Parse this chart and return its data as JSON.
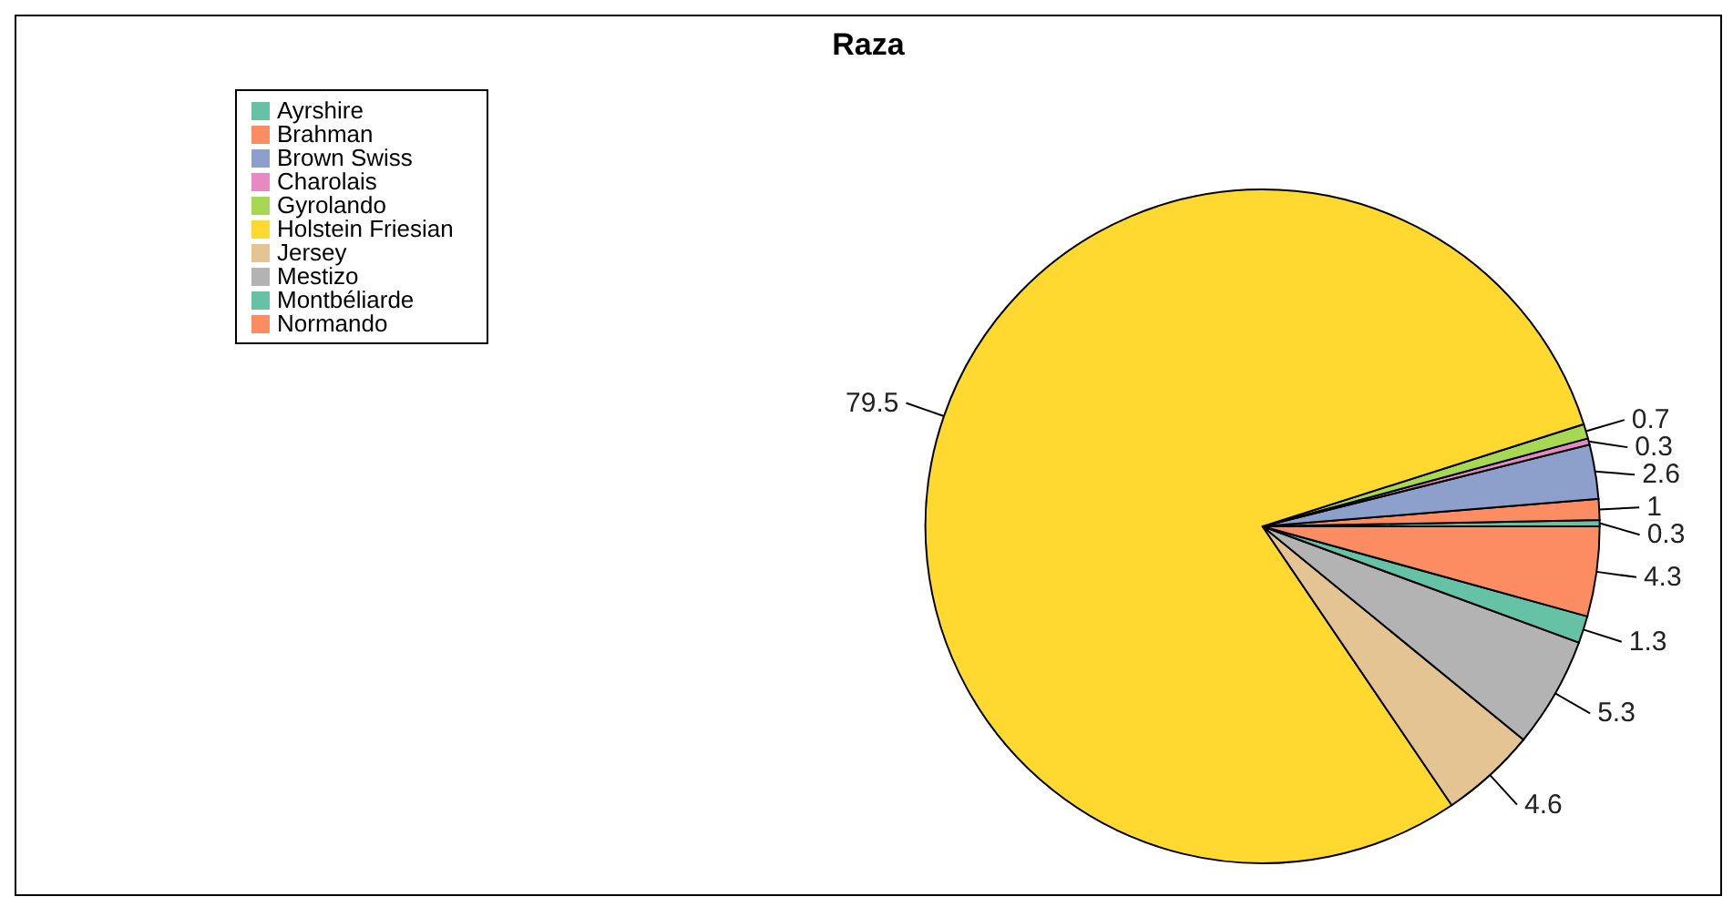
{
  "chart_data": {
    "type": "pie",
    "title": "Raza",
    "categories": [
      "Ayrshire",
      "Brahman",
      "Brown Swiss",
      "Charolais",
      "Gyrolando",
      "Holstein Friesian",
      "Jersey",
      "Mestizo",
      "Montbéliarde",
      "Normando"
    ],
    "values": [
      0.3,
      1,
      2.6,
      0.3,
      0.7,
      79.5,
      4.6,
      5.3,
      1.3,
      4.3
    ],
    "colors": [
      "#66c2a5",
      "#fc8d62",
      "#8da0cb",
      "#e78ac3",
      "#a6d854",
      "#ffd92f",
      "#e5c494",
      "#b3b3b3",
      "#66c2a5",
      "#fc8d62"
    ],
    "data_labels": true,
    "legend": "top left"
  }
}
